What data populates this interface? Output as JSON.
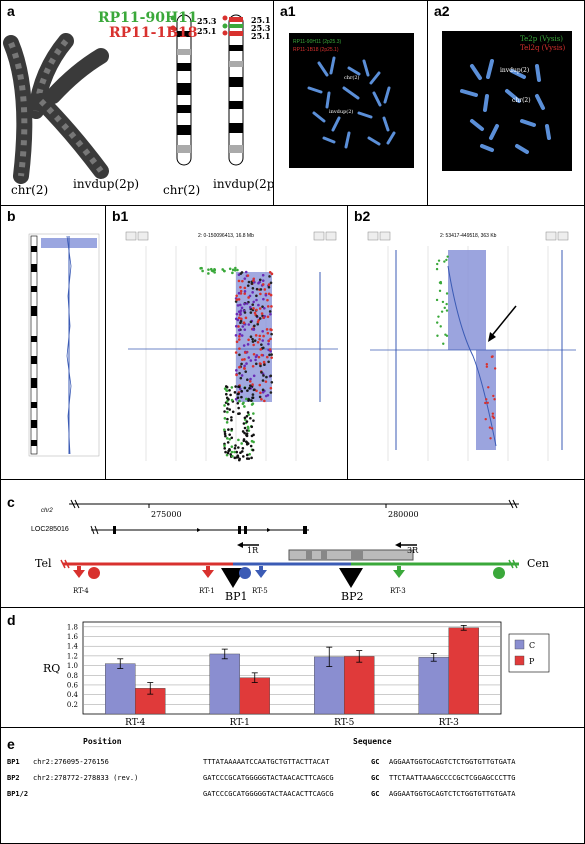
{
  "panels": {
    "a": {
      "label": "a",
      "probe1": "RP11-90H11",
      "probe2": "RP11-1B18",
      "chr_label": "chr(2)",
      "invdup_label": "invdup(2p)",
      "band1": "25.3",
      "band2": "25.1",
      "band3": "25.1",
      "band4": "25.3",
      "band5": "25.1",
      "ideo_chr": "chr(2)",
      "ideo_invdup": "invdup(2p)"
    },
    "a1": {
      "label": "a1",
      "legend1": "RP11-90H11 (2p25.3)",
      "legend2": "RP11-1B18 (2p25.1)",
      "arrow1": "chr(2)",
      "arrow2": "invdup(2)"
    },
    "a2": {
      "label": "a2",
      "legend1": "Te2p (Vysis)",
      "legend2": "Tel2q (Vysis)",
      "arrow1": "invdup(2)",
      "arrow2": "chr(2)"
    },
    "b": {
      "label": "b"
    },
    "b1": {
      "label": "b1",
      "header": "2: 0-150096413, 16.8 Mb"
    },
    "b2": {
      "label": "b2",
      "header": "2: 53417-449518, 363 Kb"
    },
    "c": {
      "label": "c",
      "chr_name": "chr2",
      "ticks": [
        "275000",
        "280000"
      ],
      "gene": "LOC285016",
      "primer_1R": "1R",
      "primer_3R": "3R",
      "tel": "Tel",
      "cen": "Cen",
      "rt_labels": [
        "RT-4",
        "RT-1",
        "RT-5",
        "RT-3"
      ],
      "bp_labels": [
        "BP1",
        "BP2"
      ]
    },
    "d": {
      "label": "d"
    },
    "e": {
      "label": "e",
      "col_position": "Position",
      "col_sequence": "Sequence",
      "rows": [
        {
          "id": "BP1",
          "pos": "chr2:276095-276156",
          "left": "TTTATAAAAATCCAATGCTGTTACTTACAT",
          "mid": "GC",
          "right": "AGGAATGGTGCAGTCTCTGGTGTTGTGATA"
        },
        {
          "id": "BP2",
          "pos": "chr2:278772-278833 (rev.)",
          "left": "GATCCCGCATGGGGGTACTAACACTTCAGCG",
          "mid": "GC",
          "right": "TTCTAATTAAAGCCCCGCTCGGAGCCCTTG"
        },
        {
          "id": "BP1/2",
          "pos": "",
          "left": "GATCCCGCATGGGGGTACTAACACTTCAGCG",
          "mid": "GC",
          "right": "AGGAATGGTGCAGTCTCTGGTGTTGTGATA"
        }
      ]
    }
  },
  "chart_data": {
    "type": "bar",
    "categories": [
      "RT-4",
      "RT-1",
      "RT-5",
      "RT-3"
    ],
    "series": [
      {
        "name": "C",
        "values": [
          1.04,
          1.24,
          1.18,
          1.17
        ],
        "errors": [
          0.1,
          0.1,
          0.2,
          0.08
        ],
        "color": "#8a8ed0"
      },
      {
        "name": "P",
        "values": [
          0.53,
          0.75,
          1.19,
          1.78
        ],
        "errors": [
          0.12,
          0.1,
          0.12,
          0.05
        ],
        "color": "#e03a3a"
      }
    ],
    "ylabel": "RQ",
    "yticks": [
      "0.2",
      "0.4",
      "0.6",
      "0.8",
      "1.0",
      "1.2",
      "1.4",
      "1.6",
      "1.8"
    ],
    "ylim": [
      0,
      1.9
    ],
    "legend_position": "right"
  },
  "colors": {
    "green": "#3aa83a",
    "red": "#d8312e",
    "blue": "#3b5bb5",
    "bar_c": "#8a8ed0",
    "bar_p": "#e03a3a"
  }
}
